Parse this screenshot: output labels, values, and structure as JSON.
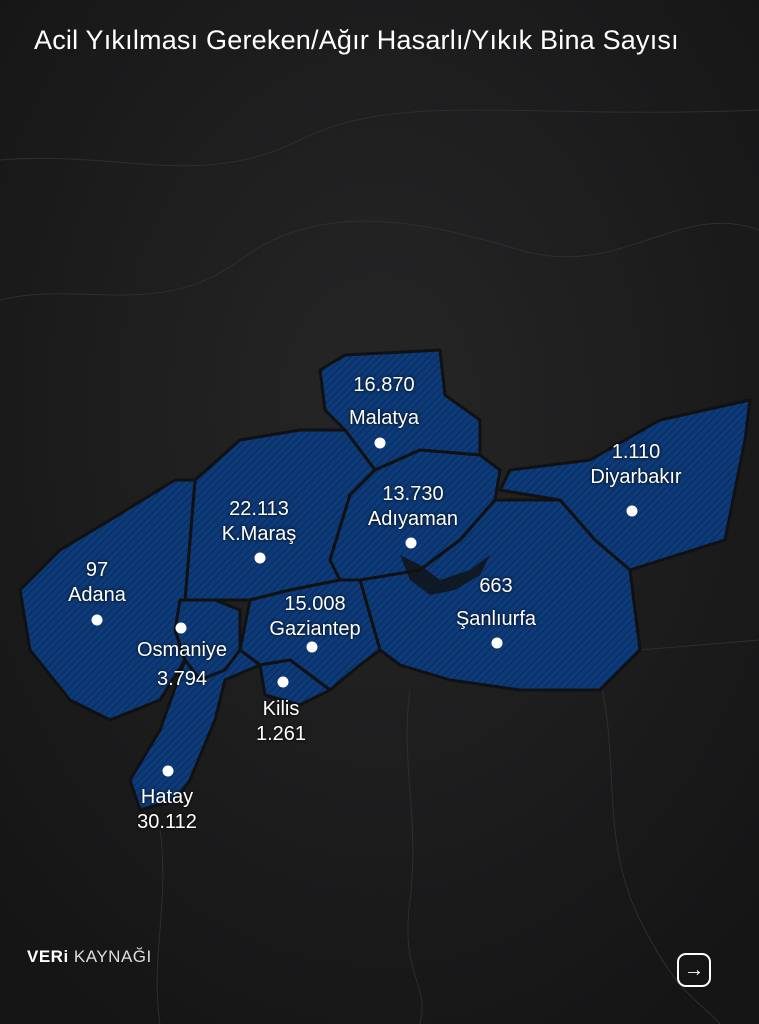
{
  "title": "Acil Yıkılması Gereken/Ağır Hasarlı/Yıkık Bina Sayısı",
  "colors": {
    "background": "#1b1b1c",
    "province_fill": "#0d3a78",
    "border": "#111111",
    "text": "#ffffff"
  },
  "provinces": [
    {
      "name": "Malatya",
      "value": "16.870"
    },
    {
      "name": "Diyarbakır",
      "value": "1.110"
    },
    {
      "name": "K.Maraş",
      "value": "22.113"
    },
    {
      "name": "Adıyaman",
      "value": "13.730"
    },
    {
      "name": "Adana",
      "value": "97"
    },
    {
      "name": "Şanlıurfa",
      "value": "663"
    },
    {
      "name": "Gaziantep",
      "value": "15.008"
    },
    {
      "name": "Osmaniye",
      "value": "3.794"
    },
    {
      "name": "Kilis",
      "value": "1.261"
    },
    {
      "name": "Hatay",
      "value": "30.112"
    }
  ],
  "footer": {
    "source_bold": "VERi",
    "source_light": "KAYNAĞI",
    "next_icon": "arrow-right-icon"
  }
}
